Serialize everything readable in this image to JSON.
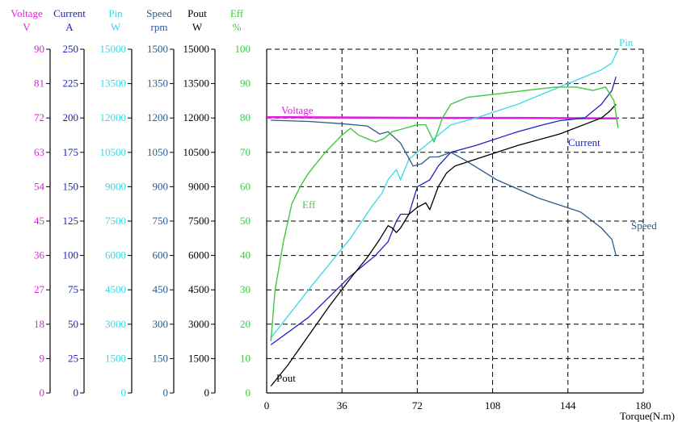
{
  "chart_data": {
    "type": "line",
    "xlabel": "Torque(N.m)",
    "x_ticks": [
      0,
      36,
      72,
      108,
      144,
      180
    ],
    "xlim": [
      0,
      180
    ],
    "grid": true,
    "colors": {
      "Voltage": "#e020e0",
      "Current": "#2020c0",
      "Pin": "#38d8e8",
      "Speed": "#2a5a8c",
      "Pout": "#000000",
      "Eff": "#40c840"
    },
    "axes": [
      {
        "key": "Voltage",
        "title": "Voltage",
        "unit": "V",
        "min": 0,
        "max": 90,
        "ticks": [
          "0",
          "9",
          "18",
          "27",
          "36",
          "45",
          "54",
          "63",
          "72",
          "81",
          "90"
        ]
      },
      {
        "key": "Current",
        "title": "Current",
        "unit": "A",
        "min": 0,
        "max": 250,
        "ticks": [
          "0",
          "25",
          "50",
          "75",
          "100",
          "125",
          "150",
          "175",
          "200",
          "225",
          "250"
        ]
      },
      {
        "key": "Pin",
        "title": "Pin",
        "unit": "W",
        "min": 0,
        "max": 15000,
        "ticks": [
          "0",
          "1500",
          "3000",
          "4500",
          "6000",
          "7500",
          "9000",
          "10500",
          "12000",
          "13500",
          "15000"
        ]
      },
      {
        "key": "Speed",
        "title": "Speed",
        "unit": "rpm",
        "min": 0,
        "max": 1500,
        "ticks": [
          "0",
          "150",
          "300",
          "450",
          "600",
          "750",
          "900",
          "1050",
          "1200",
          "1350",
          "1500"
        ]
      },
      {
        "key": "Pout",
        "title": "Pout",
        "unit": "W",
        "min": 0,
        "max": 15000,
        "ticks": [
          "0",
          "1500",
          "3000",
          "4500",
          "6000",
          "7500",
          "9000",
          "10500",
          "12000",
          "13500",
          "15000"
        ]
      },
      {
        "key": "Eff",
        "title": "Eff",
        "unit": "%",
        "min": 0,
        "max": 100,
        "ticks": [
          "0",
          "10",
          "20",
          "30",
          "40",
          "50",
          "60",
          "70",
          "80",
          "90",
          "100"
        ]
      }
    ],
    "series": [
      {
        "name": "Voltage",
        "axis": "Voltage",
        "label": "Voltage",
        "x": [
          0,
          10,
          40,
          80,
          120,
          160,
          168
        ],
        "y": [
          72.2,
          72.2,
          72.1,
          72.0,
          72.0,
          71.9,
          71.9
        ]
      },
      {
        "name": "Current",
        "axis": "Current",
        "label": "Current",
        "x": [
          2,
          20,
          40,
          52,
          58,
          62,
          64,
          68,
          72,
          78,
          82,
          88,
          100,
          120,
          132,
          140,
          152,
          160,
          165,
          167
        ],
        "y": [
          35,
          55,
          85,
          100,
          110,
          125,
          130,
          130,
          150,
          155,
          165,
          175,
          180,
          190,
          195,
          198,
          200,
          210,
          220,
          230
        ]
      },
      {
        "name": "Pin",
        "axis": "Pin",
        "label": "Pin",
        "x": [
          2,
          20,
          40,
          50,
          55,
          58,
          62,
          64,
          68,
          72,
          78,
          82,
          88,
          100,
          120,
          132,
          140,
          152,
          160,
          165,
          168
        ],
        "y": [
          2400,
          4500,
          6750,
          8100,
          8700,
          9300,
          9750,
          9300,
          10200,
          10500,
          10950,
          11250,
          11700,
          12000,
          12600,
          13050,
          13350,
          13800,
          14100,
          14400,
          15000
        ]
      },
      {
        "name": "Speed",
        "axis": "Speed",
        "label": "Speed",
        "x": [
          2,
          20,
          36,
          48,
          54,
          58,
          64,
          70,
          74,
          78,
          82,
          88,
          94,
          110,
          130,
          150,
          160,
          165,
          167
        ],
        "y": [
          1190,
          1185,
          1175,
          1165,
          1130,
          1140,
          1090,
          990,
          1000,
          1030,
          1030,
          1050,
          1020,
          930,
          850,
          790,
          720,
          670,
          600
        ]
      },
      {
        "name": "Pout",
        "axis": "Pout",
        "label": "Pout",
        "x": [
          2,
          10,
          20,
          30,
          40,
          48,
          54,
          58,
          60,
          62,
          64,
          68,
          72,
          76,
          78,
          82,
          86,
          90,
          100,
          120,
          140,
          160,
          164,
          167
        ],
        "y": [
          300,
          1200,
          2500,
          3800,
          5000,
          5900,
          6700,
          7300,
          7200,
          7000,
          7200,
          7800,
          8100,
          8300,
          8000,
          9000,
          9600,
          9900,
          10200,
          10800,
          11300,
          12000,
          12300,
          12600
        ]
      },
      {
        "name": "Eff",
        "axis": "Eff",
        "label": "Eff",
        "x": [
          2,
          4,
          8,
          12,
          16,
          20,
          28,
          36,
          40,
          44,
          48,
          52,
          56,
          60,
          66,
          72,
          76,
          80,
          84,
          88,
          96,
          110,
          124,
          138,
          148,
          156,
          162,
          166,
          168
        ],
        "y": [
          15,
          30,
          44,
          55,
          60,
          64,
          70,
          75,
          77,
          75,
          74,
          73,
          74,
          76,
          77,
          78,
          78,
          73,
          80,
          84,
          86,
          87,
          88,
          89,
          89,
          88,
          89,
          85,
          77
        ]
      }
    ]
  }
}
